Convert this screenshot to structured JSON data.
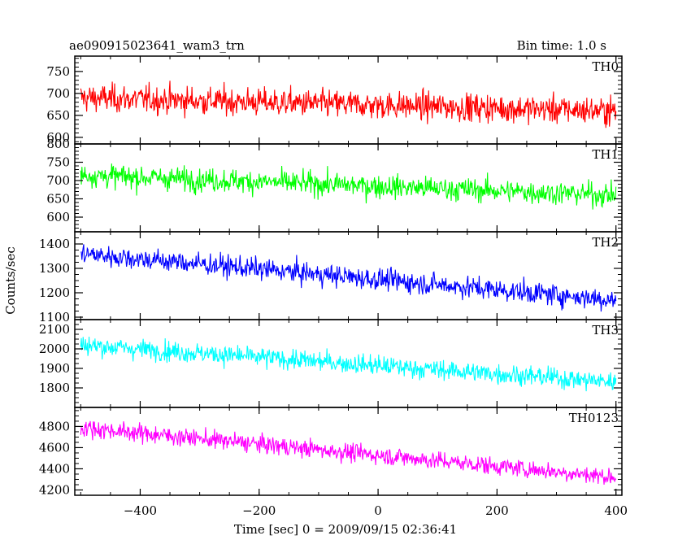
{
  "chart_data": {
    "type": "line",
    "title": "ae090915023641_wam3_trn",
    "bin_time_label": "Bin time: 1.0 s",
    "xlabel": "Time [sec] 0 = 2009/09/15 02:36:41",
    "ylabel": "Counts/sec",
    "xlim": [
      -510,
      410
    ],
    "x_ticks": [
      -400,
      -200,
      0,
      200,
      400
    ],
    "x_tick_labels": [
      "−400",
      "−200",
      "0",
      "200",
      "400"
    ],
    "x_range_data": [
      -500,
      400
    ],
    "series": [
      {
        "name": "TH0",
        "color": "#ff0000",
        "ylim": [
          585,
          785
        ],
        "y_ticks": [
          600,
          650,
          700,
          750
        ],
        "y_tick_labels": [
          "600",
          "650",
          "700",
          "750"
        ],
        "trend_start": 690,
        "trend_end": 660,
        "noise": 30
      },
      {
        "name": "TH1",
        "color": "#00ff00",
        "ylim": [
          560,
          800
        ],
        "y_ticks": [
          600,
          650,
          700,
          750,
          800
        ],
        "y_tick_labels": [
          "600",
          "650",
          "700",
          "750",
          "800"
        ],
        "trend_start": 715,
        "trend_end": 660,
        "noise": 30
      },
      {
        "name": "TH2",
        "color": "#0000ff",
        "ylim": [
          1090,
          1450
        ],
        "y_ticks": [
          1100,
          1200,
          1300,
          1400
        ],
        "y_tick_labels": [
          "1100",
          "1200",
          "1300",
          "1400"
        ],
        "trend_start": 1360,
        "trend_end": 1170,
        "noise": 42
      },
      {
        "name": "TH3",
        "color": "#00ffff",
        "ylim": [
          1700,
          2150
        ],
        "y_ticks": [
          1800,
          1900,
          2000,
          2100
        ],
        "y_tick_labels": [
          "1800",
          "1900",
          "2000",
          "2100"
        ],
        "trend_start": 2020,
        "trend_end": 1830,
        "noise": 48
      },
      {
        "name": "TH0123",
        "color": "#ff00ff",
        "ylim": [
          4150,
          4980
        ],
        "y_ticks": [
          4200,
          4400,
          4600,
          4800
        ],
        "y_tick_labels": [
          "4200",
          "4400",
          "4600",
          "4800"
        ],
        "trend_start": 4790,
        "trend_end": 4320,
        "noise": 80
      }
    ]
  }
}
